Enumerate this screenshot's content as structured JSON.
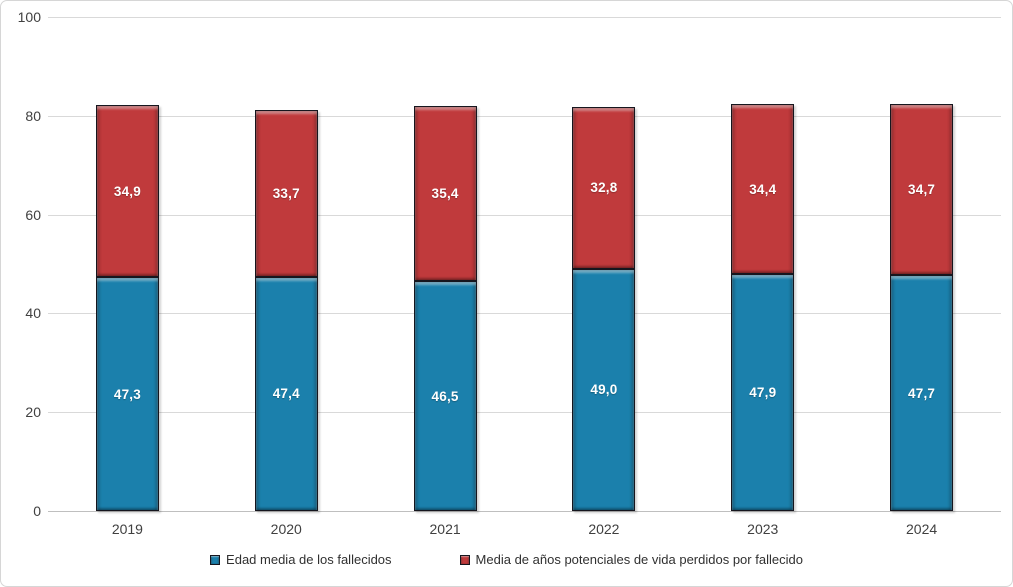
{
  "chart_data": {
    "type": "bar",
    "stacked": true,
    "orientation": "vertical",
    "categories": [
      "2019",
      "2020",
      "2021",
      "2022",
      "2023",
      "2024"
    ],
    "series": [
      {
        "name": "Edad media de los fallecidos",
        "color": "#1B80AC",
        "values": [
          47.3,
          47.4,
          46.5,
          49.0,
          47.9,
          47.7
        ],
        "value_labels": [
          "47,3",
          "47,4",
          "46,5",
          "49,0",
          "47,9",
          "47,7"
        ]
      },
      {
        "name": "Media de años potenciales de vida perdidos por fallecido",
        "color": "#C03A3C",
        "values": [
          34.9,
          33.7,
          35.4,
          32.8,
          34.4,
          34.7
        ],
        "value_labels": [
          "34,9",
          "33,7",
          "35,4",
          "32,8",
          "34,4",
          "34,7"
        ]
      }
    ],
    "title": "",
    "xlabel": "",
    "ylabel": "",
    "ylim": [
      0,
      100
    ],
    "yticks": [
      0,
      20,
      40,
      60,
      80,
      100
    ],
    "grid": true,
    "legend_position": "bottom",
    "value_label_color": "#FFFFFF",
    "axis_text_color": "#404040",
    "gridline_color": "#D9D9D9"
  }
}
